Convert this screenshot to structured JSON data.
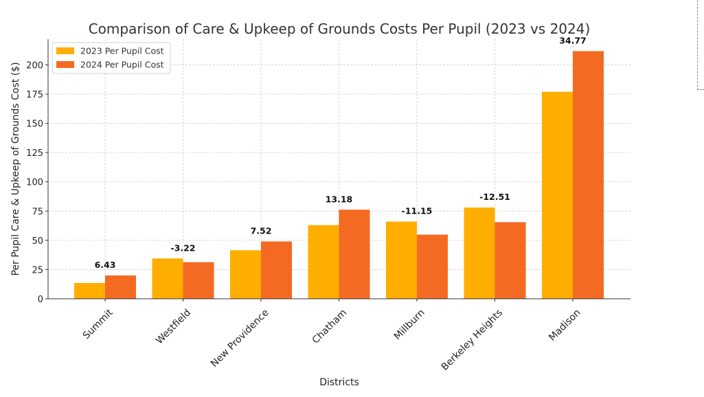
{
  "chart_data": {
    "type": "bar",
    "title": "Comparison of Care & Upkeep of Grounds Costs Per Pupil (2023 vs 2024)",
    "xlabel": "Districts",
    "ylabel": "Per Pupil Care & Upkeep of Grounds Cost ($)",
    "categories": [
      "Summit",
      "Westfield",
      "New Providence",
      "Chatham",
      "Millburn",
      "Berkeley Heights",
      "Madison"
    ],
    "series": [
      {
        "name": "2023 Per Pupil Cost",
        "color": "#FFAE00",
        "values": [
          13.5,
          34.5,
          41.5,
          63.0,
          66.0,
          78.0,
          177.0
        ]
      },
      {
        "name": "2024 Per Pupil Cost",
        "color": "#F46A22",
        "values": [
          19.93,
          31.28,
          49.02,
          76.18,
          54.85,
          65.49,
          211.77
        ]
      }
    ],
    "annotations": [
      "6.43",
      "-3.22",
      "7.52",
      "13.18",
      "-11.15",
      "-12.51",
      "34.77"
    ],
    "yticks": [
      0,
      25,
      50,
      75,
      100,
      125,
      150,
      175,
      200
    ],
    "ylim": [
      0,
      222
    ],
    "grid": true,
    "legend": "top-left"
  }
}
